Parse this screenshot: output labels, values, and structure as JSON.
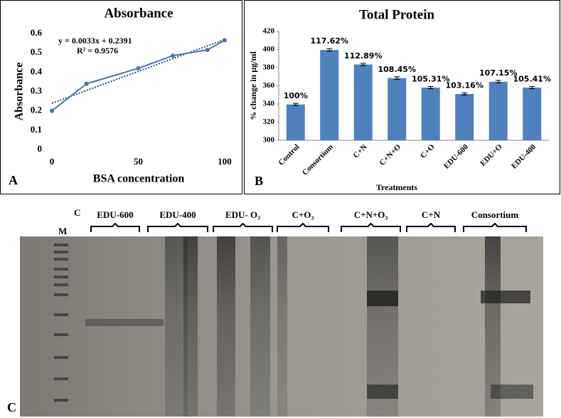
{
  "chart_data": [
    {
      "type": "line",
      "title": "Absorbance",
      "x_label": "BSA concentration",
      "y_label": "Absorbance",
      "panel": "A",
      "x": [
        0,
        20,
        50,
        70,
        90,
        100
      ],
      "values": [
        0.2,
        0.34,
        0.42,
        0.485,
        0.515,
        0.565
      ],
      "color": "#4a74a8",
      "xlim": [
        0,
        100
      ],
      "xticks": [
        0,
        50,
        100
      ],
      "ylim": [
        0,
        0.6
      ],
      "yticks": [
        0,
        0.1,
        0.2,
        0.3,
        0.4,
        0.5,
        0.6
      ],
      "trendline": {
        "equation": "y = 0.0033x + 0.2391",
        "r2_label": "R² = 0.9576",
        "slope": 0.0033,
        "intercept": 0.2391
      }
    },
    {
      "type": "bar",
      "title": "Total Protein",
      "x_label": "Treatments",
      "y_label": "% change in µg/ml",
      "panel": "B",
      "categories": [
        "Control",
        "Consortium",
        "C+N",
        "C+N+O",
        "C+O",
        "EDU-600",
        "EDU+O",
        "EDU-400"
      ],
      "values": [
        339.5,
        399.5,
        383.5,
        368.5,
        358,
        351,
        364.5,
        358
      ],
      "errors": [
        1.2,
        1.5,
        1.2,
        1.5,
        1.2,
        1.2,
        1.5,
        1.2
      ],
      "percent_labels": [
        "100%",
        "117.62%",
        "112.89%",
        "108.45%",
        "105.31%",
        "103.16%",
        "107.15%",
        "105.41%"
      ],
      "color": "#4f81bd",
      "ylim": [
        300,
        420
      ],
      "yticks": [
        300,
        320,
        340,
        360,
        380,
        400,
        420
      ]
    }
  ],
  "gel": {
    "panel": "C",
    "top_label": "C",
    "marker_label": "M",
    "lanes": [
      "EDU-600",
      "EDU-400",
      "EDU- O₃",
      "C+O₃",
      "C+N+O₃",
      "C+N",
      "Consortium"
    ]
  }
}
